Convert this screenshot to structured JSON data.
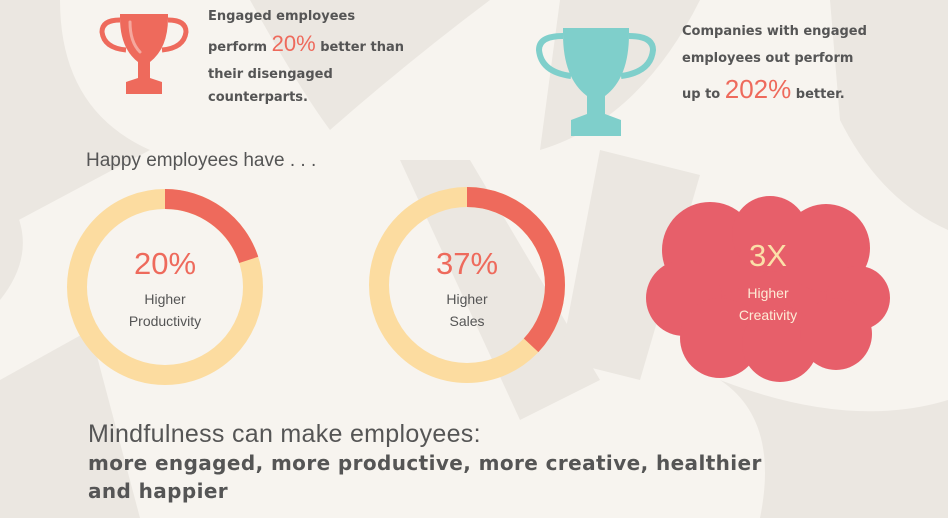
{
  "colors": {
    "background": "#f7f4ef",
    "shape": "#ebe7e1",
    "coral": "#ee6a5c",
    "teal": "#7fcfcb",
    "peach": "#fcdca0",
    "cloud": "#e75f6a"
  },
  "stats": [
    {
      "icon": "trophy-icon",
      "line1": "Engaged employees",
      "pre": "perform",
      "value": "20%",
      "post": "better than",
      "line3": "their disengaged",
      "line4": "counterparts."
    },
    {
      "icon": "trophy-icon",
      "line1": "Companies with engaged",
      "line2": "employees out perform",
      "pre": "up to",
      "value": "202%",
      "post": "better."
    }
  ],
  "happy_title": "Happy employees have . . .",
  "metrics": [
    {
      "value": "20%",
      "label1": "Higher",
      "label2": "Productivity",
      "fraction": 0.2
    },
    {
      "value": "37%",
      "label1": "Higher",
      "label2": "Sales",
      "fraction": 0.37
    },
    {
      "value": "3X",
      "label1": "Higher",
      "label2": "Creativity"
    }
  ],
  "mindfulness": {
    "title": "Mindfulness can make employees:",
    "body": "more engaged, more productive, more creative, healthier and happier"
  }
}
